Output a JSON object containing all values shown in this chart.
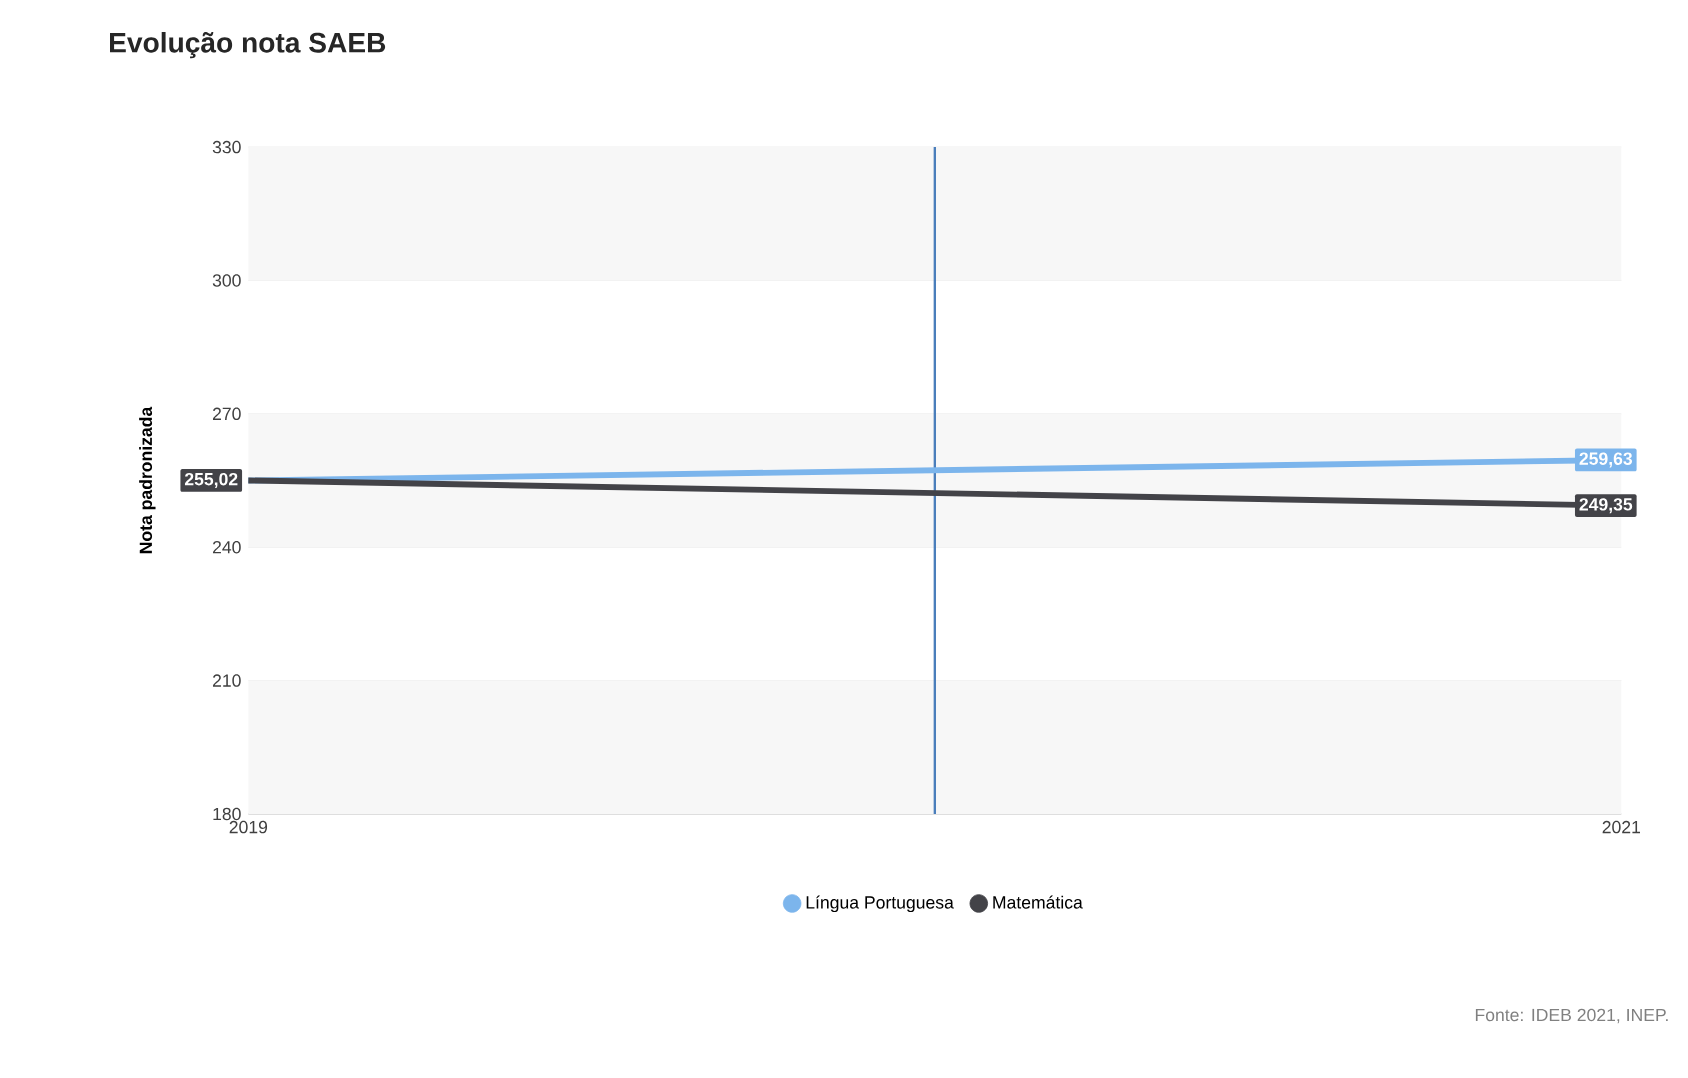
{
  "chart_data": {
    "type": "line",
    "title": "Evolução nota SAEB",
    "ylabel": "Nota padronizada",
    "x": [
      2019,
      2021
    ],
    "xlim": [
      2019,
      2021
    ],
    "xticks": [
      2019,
      2021
    ],
    "ylim": [
      180,
      330
    ],
    "yticks": [
      180,
      210,
      240,
      270,
      300,
      330
    ],
    "series": [
      {
        "name": "Língua Portuguesa",
        "color": "#7cb5ec",
        "values": [
          255,
          259.63
        ],
        "value_labels": [
          null,
          "259,63"
        ]
      },
      {
        "name": "Matemática",
        "color": "#434348",
        "values": [
          255.02,
          249.35
        ],
        "value_labels": [
          "255,02",
          "249,35"
        ]
      }
    ],
    "bands": [
      {
        "axis": "y",
        "from": 180,
        "to": 210,
        "color": "#f7f7f7"
      },
      {
        "axis": "y",
        "from": 240,
        "to": 270,
        "color": "#f7f7f7"
      },
      {
        "axis": "y",
        "from": 300,
        "to": 330,
        "color": "#f7f7f7"
      }
    ],
    "ref_lines": [
      {
        "axis": "x",
        "value": 2020,
        "color": "#4a7ebb"
      }
    ],
    "grid": "y",
    "legend": "bottom",
    "line_style": "solid",
    "annotations": [
      "Fonte: IDEB 2021, INEP."
    ]
  }
}
